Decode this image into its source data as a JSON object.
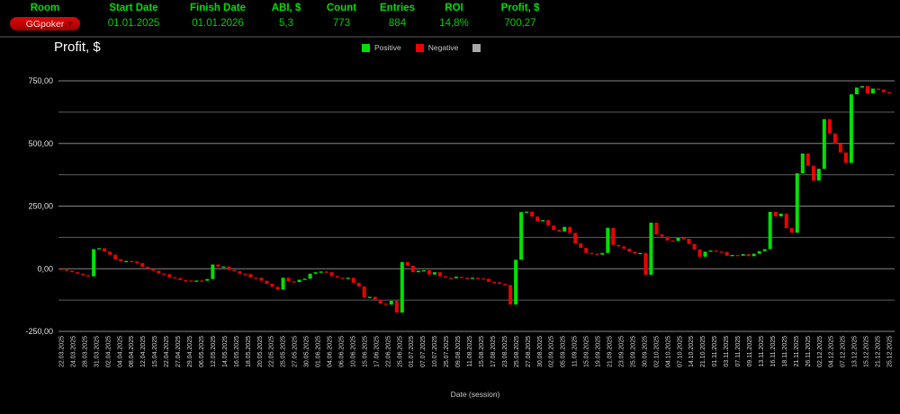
{
  "header": {
    "columns": [
      {
        "label": "Room",
        "value": "GGpoker"
      },
      {
        "label": "Start Date",
        "value": "01.01.2025"
      },
      {
        "label": "Finish Date",
        "value": "01.01.2026"
      },
      {
        "label": "ABI, $",
        "value": "5,3"
      },
      {
        "label": "Count",
        "value": "773"
      },
      {
        "label": "Entries",
        "value": "884"
      },
      {
        "label": "ROI",
        "value": "14,8%"
      },
      {
        "label": "Profit, $",
        "value": "700,27"
      }
    ],
    "theme": {
      "label_green": "#00dd00",
      "value_green": "#00cf00",
      "pill_red": "#c40404"
    }
  },
  "legend": {
    "items": [
      {
        "label": "Positive",
        "color": "#00e000"
      },
      {
        "label": "Negative",
        "color": "#ee0000"
      },
      {
        "label": "",
        "color": "#a7a7a7"
      }
    ]
  },
  "chart_data": {
    "type": "waterfall-candlestick",
    "title": "Profit, $",
    "xlabel": "Date (session)",
    "legend_position": "top-center",
    "grid": true,
    "start_value": 0,
    "final_value": 700.27,
    "y_axis": {
      "range": [
        -250,
        750
      ],
      "ticks": [
        {
          "value": 750,
          "label": "750,00"
        },
        {
          "value": 500,
          "label": "500,00"
        },
        {
          "value": 250,
          "label": "250,00"
        },
        {
          "value": 0,
          "label": "0,00"
        },
        {
          "value": -250,
          "label": "-250,00"
        }
      ],
      "minor_grid": [
        625,
        375,
        125,
        -125
      ]
    },
    "x_labels": [
      "22.03.2025",
      "24.03.2025",
      "28.03.2025",
      "31.03.2025",
      "02.04.2025",
      "04.04.2025",
      "08.04.2025",
      "12.04.2025",
      "15.04.2025",
      "22.04.2025",
      "27.04.2025",
      "29.04.2025",
      "06.05.2025",
      "12.05.2025",
      "14.05.2025",
      "16.05.2025",
      "18.05.2025",
      "20.05.2025",
      "22.05.2025",
      "25.05.2025",
      "27.05.2025",
      "30.05.2025",
      "01.06.2025",
      "04.06.2025",
      "06.06.2025",
      "10.06.2025",
      "15.06.2025",
      "17.06.2025",
      "22.06.2025",
      "25.06.2025",
      "01.07.2025",
      "07.07.2025",
      "10.07.2025",
      "25.07.2025",
      "09.08.2025",
      "11.08.2025",
      "15.08.2025",
      "17.08.2025",
      "23.08.2025",
      "25.08.2025",
      "27.08.2025",
      "30.08.2025",
      "02.09.2025",
      "05.09.2025",
      "11.09.2025",
      "15.09.2025",
      "19.09.2025",
      "21.09.2025",
      "23.09.2025",
      "25.09.2025",
      "30.09.2025",
      "02.10.2025",
      "04.10.2025",
      "07.10.2025",
      "14.10.2025",
      "21.10.2025",
      "01.11.2025",
      "03.11.2025",
      "07.11.2025",
      "09.11.2025",
      "13.11.2025",
      "16.11.2025",
      "18.11.2025",
      "21.11.2025",
      "26.11.2025",
      "02.12.2025",
      "04.12.2025",
      "07.12.2025",
      "13.12.2025",
      "15.12.2025",
      "21.12.2025",
      "25.12.2025"
    ],
    "cumulative_profit": [
      -4,
      -8,
      -14,
      -20,
      -26,
      -30,
      78,
      82,
      68,
      56,
      38,
      29,
      31,
      29,
      22,
      8,
      0,
      -8,
      -19,
      -22,
      -34,
      -37,
      -45,
      -47,
      -49,
      -47,
      -48,
      -41,
      17,
      8,
      9,
      -5,
      -10,
      -20,
      -21,
      -35,
      -36,
      -48,
      -60,
      -72,
      -83,
      -36,
      -50,
      -53,
      -44,
      -40,
      -20,
      -14,
      -11,
      -14,
      -29,
      -36,
      -38,
      -36,
      -56,
      -71,
      -115,
      -112,
      -124,
      -139,
      -143,
      -128,
      -175,
      27,
      12,
      -14,
      -8,
      -6,
      -23,
      -14,
      -30,
      -36,
      -38,
      -32,
      -36,
      -38,
      -36,
      -38,
      -40,
      -52,
      -54,
      -60,
      -65,
      -143,
      36,
      226,
      228,
      208,
      190,
      194,
      172,
      155,
      149,
      167,
      143,
      101,
      83,
      63,
      60,
      56,
      63,
      163,
      95,
      89,
      80,
      68,
      60,
      63,
      -24,
      184,
      137,
      128,
      113,
      111,
      123,
      119,
      99,
      77,
      48,
      68,
      73,
      69,
      67,
      52,
      55,
      52,
      58,
      50,
      60,
      70,
      78,
      227,
      209,
      220,
      162,
      144,
      381,
      460,
      411,
      352,
      399,
      597,
      540,
      499,
      464,
      422,
      696,
      723,
      729,
      700,
      719,
      715,
      705,
      700.27
    ],
    "colors": {
      "positive": "#00e000",
      "negative": "#ee0000",
      "grid_major": "#868686",
      "grid_minor": "#5e5e5e",
      "axis_text": "#d6d6d6"
    }
  }
}
